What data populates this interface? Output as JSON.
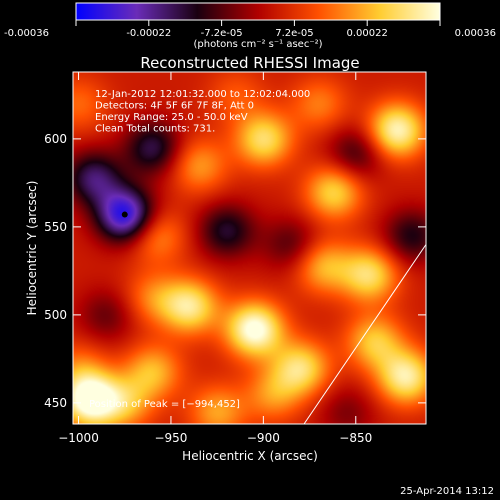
{
  "colorbar": {
    "ticks": [
      "-0.00036",
      "-0.00022",
      "-7.2e-05",
      "7.2e-05",
      "0.00022",
      "0.00036"
    ],
    "unit_html": "(photons cm⁻² s⁻¹ asec⁻²)",
    "range": [
      -0.00036,
      0.00036
    ],
    "colors": [
      "#0000ff",
      "#6a2cb8",
      "#1a0010",
      "#b00000",
      "#ff5000",
      "#ffcc30",
      "#ffffe0"
    ]
  },
  "chart_data": {
    "type": "heatmap",
    "title": "Reconstructed RHESSI Image",
    "xlabel": "Heliocentric X (arcsec)",
    "ylabel": "Heliocentric Y (arcsec)",
    "xlim": [
      -1003,
      -812
    ],
    "ylim": [
      438,
      638
    ],
    "x_ticks": [
      -1000,
      -950,
      -900,
      -850
    ],
    "y_ticks": [
      450,
      500,
      550,
      600
    ],
    "x_tick_labels": [
      "−1000",
      "−950",
      "−900",
      "−850"
    ],
    "y_tick_labels": [
      "450",
      "500",
      "550",
      "600"
    ],
    "annotations": [
      "12-Jan-2012 12:01:32.000 to 12:02:04.000",
      "Detectors: 4F 5F 6F 7F 8F, Att 0",
      "Energy Range: 25.0 - 50.0 keV",
      "Clean    Total counts: 731."
    ],
    "peak_label": "Position of Peak = [−994,452]",
    "peak_position": [
      -994,
      452
    ],
    "limb_line": [
      [
        -878,
        438
      ],
      [
        -812,
        540
      ]
    ],
    "min_marker": [
      -975,
      557
    ],
    "features": [
      {
        "x": -905,
        "y": 492,
        "value": 0.00034
      },
      {
        "x": -940,
        "y": 505,
        "value": 0.00026
      },
      {
        "x": -880,
        "y": 470,
        "value": 0.00024
      },
      {
        "x": -994,
        "y": 452,
        "value": 0.00036
      },
      {
        "x": -960,
        "y": 468,
        "value": 0.00018
      },
      {
        "x": -828,
        "y": 605,
        "value": 0.0003
      },
      {
        "x": -862,
        "y": 570,
        "value": 0.00022
      },
      {
        "x": -843,
        "y": 523,
        "value": 0.00024
      },
      {
        "x": -868,
        "y": 528,
        "value": 0.00018
      },
      {
        "x": -823,
        "y": 465,
        "value": 0.00028
      },
      {
        "x": -840,
        "y": 485,
        "value": 0.0002
      },
      {
        "x": -900,
        "y": 600,
        "value": 0.00024
      },
      {
        "x": -935,
        "y": 585,
        "value": 0.00015
      },
      {
        "x": -958,
        "y": 545,
        "value": 0.00014
      },
      {
        "x": -960,
        "y": 595,
        "value": -0.0002
      },
      {
        "x": -975,
        "y": 557,
        "value": -0.00036
      },
      {
        "x": -992,
        "y": 578,
        "value": -0.00022
      },
      {
        "x": -1000,
        "y": 620,
        "value": 0.0001
      },
      {
        "x": -920,
        "y": 548,
        "value": -0.00018
      },
      {
        "x": -885,
        "y": 540,
        "value": -0.00012
      },
      {
        "x": -850,
        "y": 592,
        "value": -0.00014
      },
      {
        "x": -820,
        "y": 545,
        "value": -0.00016
      },
      {
        "x": -870,
        "y": 620,
        "value": 0.00012
      },
      {
        "x": -915,
        "y": 625,
        "value": 8e-05
      },
      {
        "x": -985,
        "y": 500,
        "value": -0.0001
      },
      {
        "x": -960,
        "y": 510,
        "value": 0.00012
      },
      {
        "x": -925,
        "y": 445,
        "value": 0.00016
      },
      {
        "x": -895,
        "y": 455,
        "value": 0.00014
      },
      {
        "x": -855,
        "y": 445,
        "value": -8e-05
      },
      {
        "x": -1000,
        "y": 470,
        "value": 0.0001
      },
      {
        "x": -975,
        "y": 450,
        "value": 0.00016
      }
    ]
  },
  "footer": {
    "timestamp": "25-Apr-2014 13:12"
  }
}
